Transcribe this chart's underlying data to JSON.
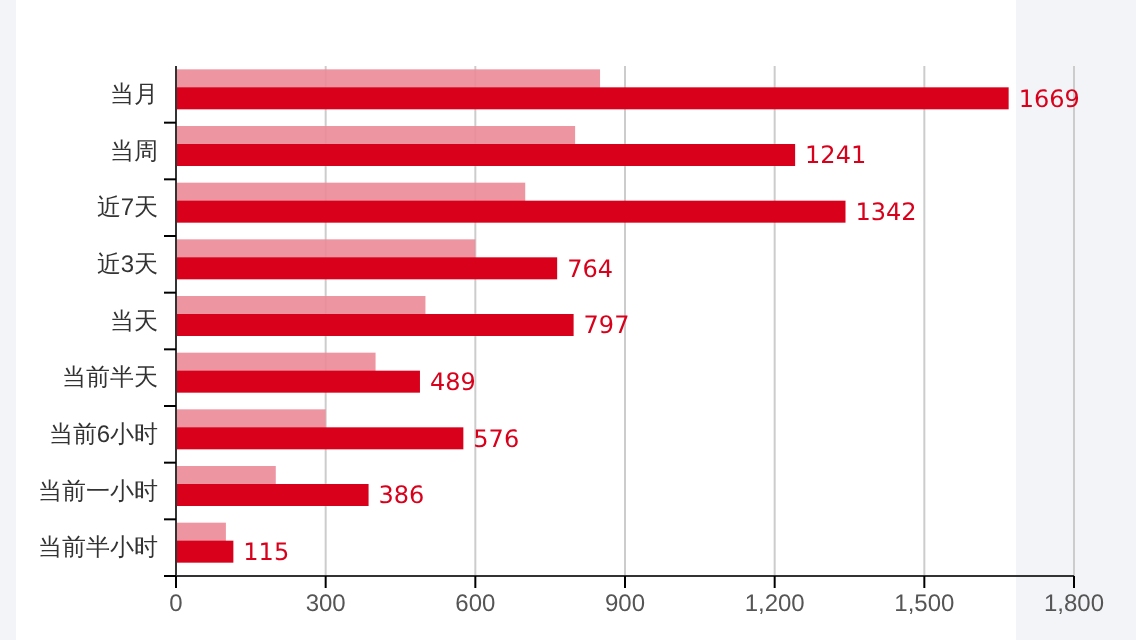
{
  "chart_data": {
    "type": "bar",
    "orientation": "horizontal",
    "categories": [
      "当月",
      "当周",
      "近7天",
      "近3天",
      "当天",
      "当前半天",
      "当前6小时",
      "当前一小时",
      "当前半小时"
    ],
    "series": [
      {
        "color": "#ec8a98",
        "values": [
          850,
          800,
          700,
          600,
          500,
          400,
          300,
          200,
          100
        ]
      },
      {
        "color": "#d9001b",
        "values": [
          1669,
          1241,
          1342,
          764,
          797,
          489,
          576,
          386,
          115
        ],
        "data_labels": true
      }
    ],
    "xlim": [
      0,
      1800
    ],
    "xticks": [
      0,
      {
        "value": 300,
        "label": "300"
      },
      {
        "value": 600,
        "label": "600"
      },
      {
        "value": 900,
        "label": "900"
      },
      {
        "value": 1200,
        "label": "1,200"
      },
      {
        "value": 1500,
        "label": "1,500"
      },
      {
        "value": 1800,
        "label": "1,800"
      }
    ],
    "grid": "x"
  }
}
